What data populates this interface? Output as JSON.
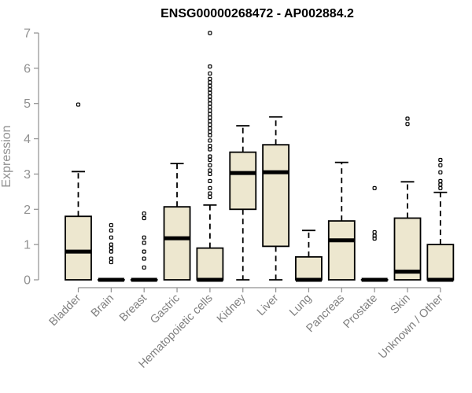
{
  "chart_data": {
    "type": "boxplot",
    "title": "ENSG00000268472 - AP002884.2",
    "ylabel": "Expression",
    "xlabel": "",
    "ylim": [
      0,
      7
    ],
    "yticks": [
      0,
      1,
      2,
      3,
      4,
      5,
      6,
      7
    ],
    "grid": false,
    "box_color": "#EDE7CF",
    "categories": [
      "Bladder",
      "Brain",
      "Breast",
      "Gastric",
      "Hematopoietic cells",
      "Kidney",
      "Liver",
      "Lung",
      "Pancreas",
      "Prostate",
      "Skin",
      "Unknown / Other"
    ],
    "boxes": [
      {
        "q1": 0,
        "median": 0.8,
        "q3": 1.8,
        "whisker_low": 0,
        "whisker_high": 3.07,
        "outliers": [
          4.97
        ]
      },
      {
        "q1": 0,
        "median": 0,
        "q3": 0,
        "whisker_low": 0,
        "whisker_high": 0,
        "outliers": [
          0.5,
          0.6,
          0.8,
          0.9,
          1.0,
          1.2,
          1.4,
          1.55
        ]
      },
      {
        "q1": 0,
        "median": 0,
        "q3": 0,
        "whisker_low": 0,
        "whisker_high": 0,
        "outliers": [
          0.35,
          0.6,
          0.8,
          1.05,
          1.2,
          1.75,
          1.88
        ]
      },
      {
        "q1": 0,
        "median": 1.18,
        "q3": 2.07,
        "whisker_low": 0,
        "whisker_high": 3.3,
        "outliers": []
      },
      {
        "q1": 0,
        "median": 0,
        "q3": 0.9,
        "whisker_low": 0,
        "whisker_high": 2.12,
        "outliers": [
          2.35,
          2.45,
          2.6,
          2.8,
          3.0,
          3.1,
          3.25,
          3.4,
          3.5,
          3.7,
          3.8,
          3.95,
          4.1,
          4.2,
          4.3,
          4.4,
          4.5,
          4.6,
          4.7,
          4.8,
          4.9,
          5.0,
          5.1,
          5.2,
          5.3,
          5.4,
          5.5,
          5.6,
          5.7,
          5.85,
          6.05,
          7.0
        ]
      },
      {
        "q1": 2.0,
        "median": 3.03,
        "q3": 3.62,
        "whisker_low": 0,
        "whisker_high": 4.37,
        "outliers": []
      },
      {
        "q1": 0.95,
        "median": 3.05,
        "q3": 3.83,
        "whisker_low": 0,
        "whisker_high": 4.62,
        "outliers": []
      },
      {
        "q1": 0,
        "median": 0,
        "q3": 0.65,
        "whisker_low": 0,
        "whisker_high": 1.4,
        "outliers": []
      },
      {
        "q1": 0,
        "median": 1.12,
        "q3": 1.67,
        "whisker_low": 0,
        "whisker_high": 3.33,
        "outliers": []
      },
      {
        "q1": 0,
        "median": 0,
        "q3": 0,
        "whisker_low": 0,
        "whisker_high": 0,
        "outliers": [
          1.17,
          1.25,
          1.35,
          2.6
        ]
      },
      {
        "q1": 0,
        "median": 0.23,
        "q3": 1.75,
        "whisker_low": 0,
        "whisker_high": 2.78,
        "outliers": [
          4.42,
          4.57
        ]
      },
      {
        "q1": 0,
        "median": 0,
        "q3": 1.0,
        "whisker_low": 0,
        "whisker_high": 2.48,
        "outliers": [
          2.6,
          2.7,
          2.8,
          3.05,
          3.25,
          3.4
        ]
      }
    ]
  }
}
